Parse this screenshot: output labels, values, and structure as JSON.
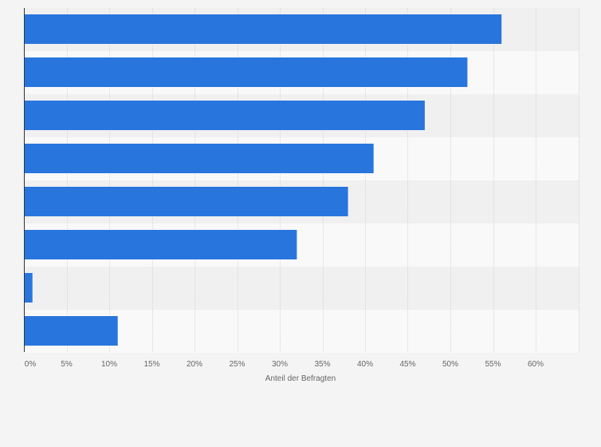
{
  "chart_data": {
    "type": "bar",
    "orientation": "horizontal",
    "categories": [
      "",
      "",
      "",
      "",
      "",
      "",
      "",
      ""
    ],
    "values": [
      56,
      52,
      47,
      41,
      38,
      32,
      1,
      11
    ],
    "xlabel": "Anteil der Befragten",
    "ylabel": "",
    "xlim": [
      0,
      65
    ],
    "x_ticks": [
      0,
      5,
      10,
      15,
      20,
      25,
      30,
      35,
      40,
      45,
      50,
      55,
      60
    ],
    "x_tick_labels": [
      "0%",
      "5%",
      "10%",
      "15%",
      "20%",
      "25%",
      "30%",
      "35%",
      "40%",
      "45%",
      "50%",
      "55%",
      "60%"
    ],
    "grid": true,
    "legend": "none",
    "bar_color": "#2876dd",
    "band_colors": [
      "#f0f0f0",
      "#f9f9f9"
    ],
    "grid_color": "#d6d6d6",
    "axis_color": "#333333"
  }
}
